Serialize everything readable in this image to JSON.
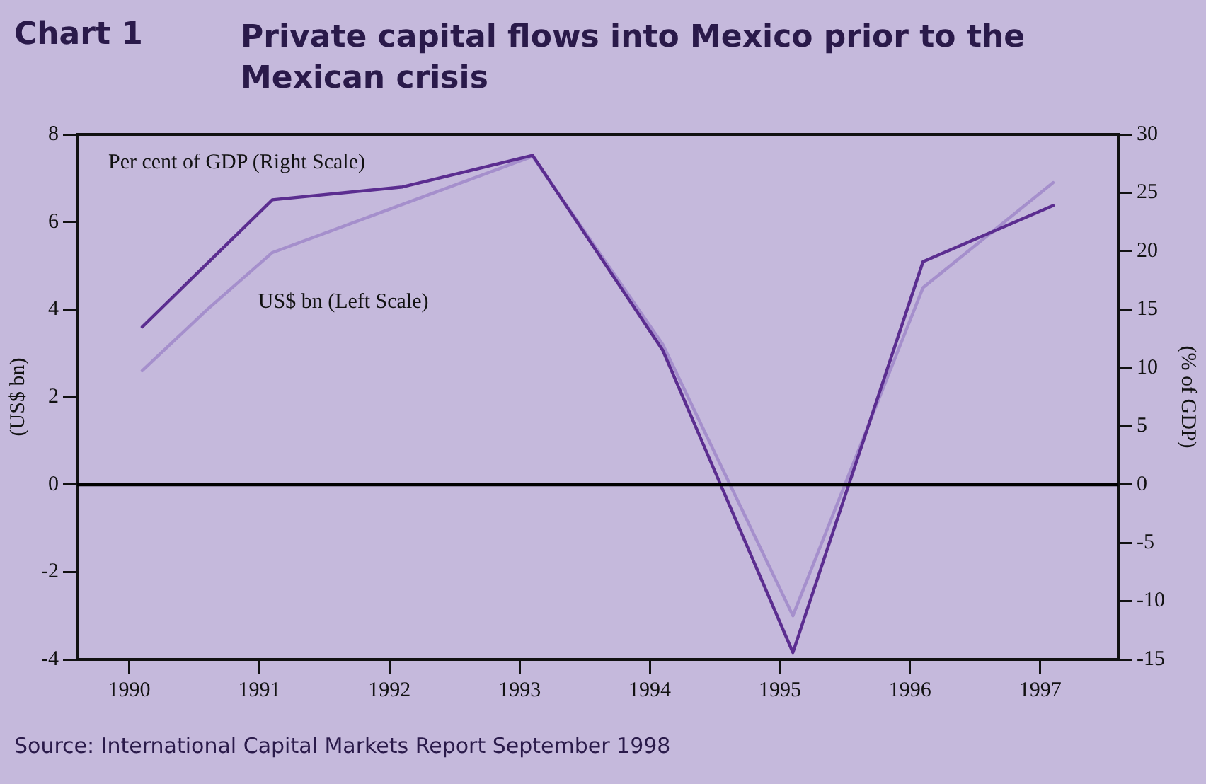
{
  "chart_data": {
    "type": "line",
    "title": "Private capital flows into Mexico prior to the Mexican crisis",
    "ylabel": "(US$ bn)",
    "y2label": "(% of GDP)",
    "annotations": [
      "Chart 1",
      "Source: International Capital Markets Report September 1998"
    ],
    "xlim": [
      1989.6,
      1997.6
    ],
    "xticks": [
      1990,
      1991,
      1992,
      1993,
      1994,
      1995,
      1996,
      1997
    ],
    "ylim": [
      -4,
      8
    ],
    "yticks": [
      -4,
      -2,
      0,
      2,
      4,
      6,
      8
    ],
    "y2lim": [
      -15,
      30
    ],
    "y2ticks": [
      -15,
      -10,
      -5,
      0,
      5,
      10,
      15,
      20,
      25,
      30
    ],
    "grid": false,
    "legend": false,
    "marker": "none",
    "line_style": "solid",
    "ref_lines": [
      {
        "axis": "y",
        "value": 0,
        "color": "#000000"
      }
    ],
    "series": [
      {
        "name": "Per cent of GDP (Right Scale)",
        "color": "#5b2d90",
        "axis": "y2",
        "x": [
          1990.1,
          1991.1,
          1992.1,
          1993.1,
          1994.1,
          1995.1,
          1996.1,
          1997.1
        ],
        "values": [
          13.5,
          24.4,
          25.5,
          28.2,
          11.5,
          -14.4,
          19.1,
          23.9
        ]
      },
      {
        "name": "US$ bn (Left Scale)",
        "color": "#a58fcc",
        "axis": "y",
        "x": [
          1990.1,
          1990.6,
          1991.1,
          1992.1,
          1993.1,
          1994.1,
          1995.1,
          1996.1,
          1997.1
        ],
        "values": [
          2.6,
          4.0,
          5.3,
          6.4,
          7.5,
          3.2,
          -3.0,
          4.5,
          6.9
        ]
      }
    ]
  }
}
